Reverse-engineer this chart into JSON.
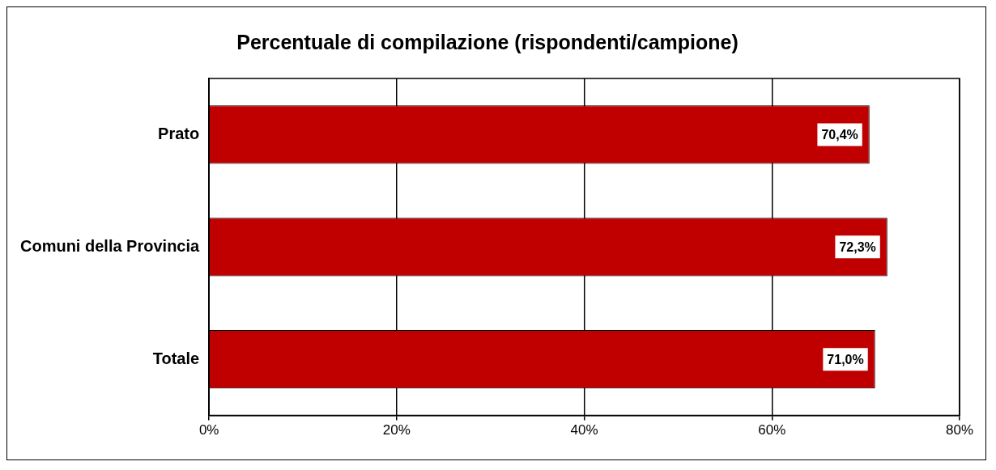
{
  "chart_data": {
    "type": "bar",
    "orientation": "horizontal",
    "title": "Percentuale di compilazione (rispondenti/campione)",
    "categories": [
      "Prato",
      "Comuni della Provincia",
      "Totale"
    ],
    "values": [
      70.4,
      72.3,
      71.0
    ],
    "color": "#c00000",
    "value_labels": [
      "70,4%",
      "72,3%",
      "71,0%"
    ],
    "xlim": [
      0,
      80
    ],
    "xticks": [
      {
        "value": 0,
        "label": "0%"
      },
      {
        "value": 20,
        "label": "20%"
      },
      {
        "value": 40,
        "label": "40%"
      },
      {
        "value": 60,
        "label": "60%"
      },
      {
        "value": 80,
        "label": "80%"
      }
    ],
    "grid": "x",
    "legend": false
  }
}
